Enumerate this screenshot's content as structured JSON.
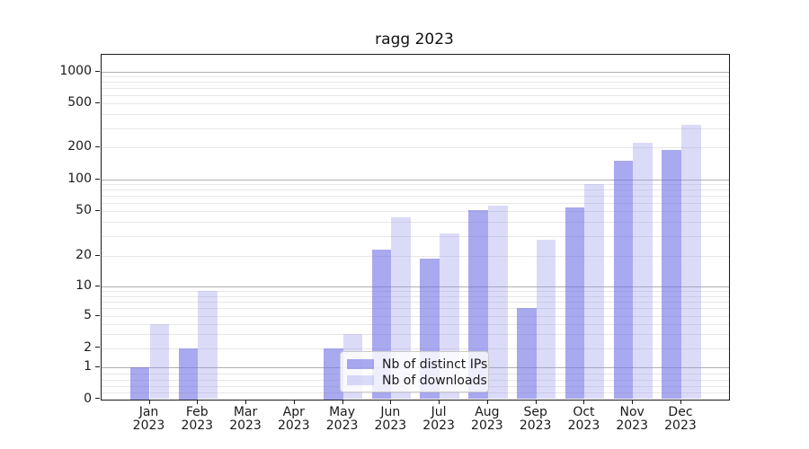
{
  "title": "ragg 2023",
  "legend": {
    "items": [
      {
        "label": "Nb of distinct IPs",
        "swatch": "dark-blue"
      },
      {
        "label": "Nb of downloads",
        "swatch": "light-blue"
      }
    ]
  },
  "colors": {
    "bar_distinct_ips": "rgba(112,112,228,0.6)",
    "bar_downloads": "rgba(152,152,235,0.35)",
    "grid_major": "#b0b0b0",
    "grid_minor": "#e7e7e7",
    "axis": "#1a1a1a"
  },
  "chart_data": {
    "type": "bar",
    "title": "ragg 2023",
    "xlabel": "",
    "ylabel": "",
    "yscale": "symlog",
    "ylim": [
      0,
      1470
    ],
    "grid": true,
    "legend_position": "lower center",
    "categories": [
      "Jan 2023",
      "Feb 2023",
      "Mar 2023",
      "Apr 2023",
      "May 2023",
      "Jun 2023",
      "Jul 2023",
      "Aug 2023",
      "Sep 2023",
      "Oct 2023",
      "Nov 2023",
      "Dec 2023"
    ],
    "x_tick_month_labels": [
      "Jan",
      "Feb",
      "Mar",
      "Apr",
      "May",
      "Jun",
      "Jul",
      "Aug",
      "Sep",
      "Oct",
      "Nov",
      "Dec"
    ],
    "x_tick_year_label": "2023",
    "y_tick_values": [
      0,
      1,
      2,
      5,
      10,
      20,
      50,
      100,
      200,
      500,
      1000
    ],
    "y_tick_labels": [
      "0",
      "1",
      "2",
      "5",
      "10",
      "20",
      "50",
      "100",
      "200",
      "500",
      "1000"
    ],
    "y_major_grid_values": [
      1,
      10,
      100,
      1000
    ],
    "y_minor_grid_values": [
      0.2,
      0.4,
      0.6,
      0.8,
      2,
      3,
      4,
      5,
      6,
      7,
      8,
      9,
      20,
      30,
      40,
      50,
      60,
      70,
      80,
      90,
      200,
      300,
      400,
      500,
      600,
      700,
      800,
      900
    ],
    "series": [
      {
        "name": "Nb of distinct IPs",
        "values": [
          1,
          2,
          0,
          0,
          2,
          23,
          19,
          51,
          6,
          54,
          150,
          190
        ]
      },
      {
        "name": "Nb of downloads",
        "values": [
          4,
          9,
          0,
          0,
          3,
          44,
          32,
          57,
          28,
          90,
          220,
          320
        ]
      }
    ]
  }
}
